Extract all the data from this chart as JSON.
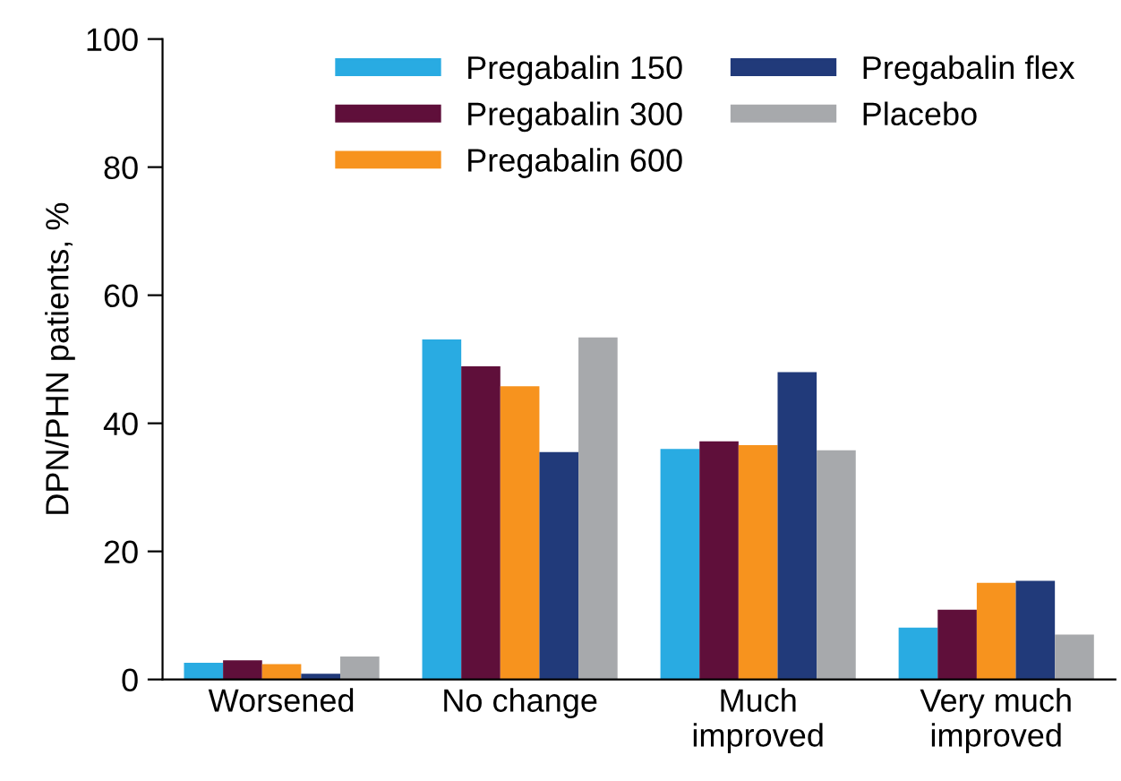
{
  "chart_data": {
    "type": "bar",
    "ylabel": "DPN/PHN patients, %",
    "categories": [
      "Worsened",
      "No change",
      "Much\nimproved",
      "Very much\nimproved"
    ],
    "series": [
      {
        "name": "Pregabalin 150",
        "color": "#29abe2",
        "values": [
          2.6,
          53.1,
          36.0,
          8.1
        ]
      },
      {
        "name": "Pregabalin 300",
        "color": "#5f0f3a",
        "values": [
          3.0,
          48.9,
          37.2,
          10.9
        ]
      },
      {
        "name": "Pregabalin 600",
        "color": "#f7931e",
        "values": [
          2.4,
          45.8,
          36.6,
          15.1
        ]
      },
      {
        "name": "Pregabalin flex",
        "color": "#213a7a",
        "values": [
          0.9,
          35.5,
          48.0,
          15.4
        ]
      },
      {
        "name": "Placebo",
        "color": "#a7a9ac",
        "values": [
          3.6,
          53.4,
          35.8,
          7.0
        ]
      }
    ],
    "ylim": [
      0,
      100
    ],
    "yticks": [
      0,
      20,
      40,
      60,
      80,
      100
    ],
    "grid": false,
    "legend": "top"
  }
}
